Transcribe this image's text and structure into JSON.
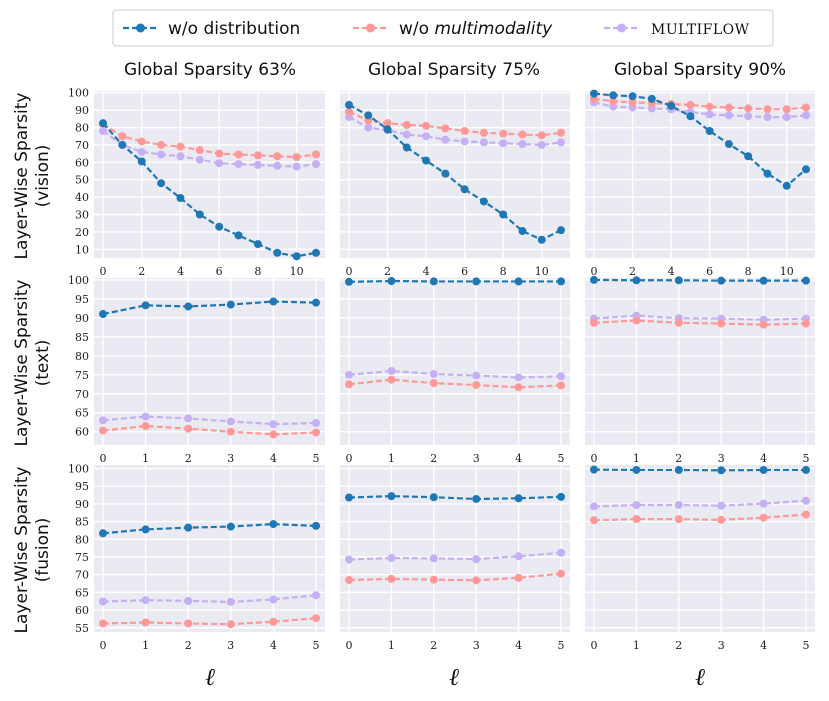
{
  "legend": {
    "items": [
      {
        "prefix": "w/o ",
        "text": "distribution",
        "style": "normal",
        "color": "#1f77b4"
      },
      {
        "prefix": "w/o ",
        "text": "multimodality",
        "style": "italic",
        "color": "#ff9896"
      },
      {
        "prefix": "",
        "text": "MULTIFLOW",
        "style": "smallcaps",
        "color": "#c5b0f5"
      }
    ]
  },
  "columns": [
    "Global Sparsity 63%",
    "Global Sparsity 75%",
    "Global Sparsity 90%"
  ],
  "rows": [
    {
      "label_line1": "Layer-Wise Sparsity",
      "label_line2": "(vision)"
    },
    {
      "label_line1": "Layer-Wise Sparsity",
      "label_line2": "(text)"
    },
    {
      "label_line1": "Layer-Wise Sparsity",
      "label_line2": "(fusion)"
    }
  ],
  "xlabel": "ℓ",
  "chart_data": [
    {
      "type": "line",
      "row": 0,
      "col": 0,
      "x": [
        0,
        1,
        2,
        3,
        4,
        5,
        6,
        7,
        8,
        9,
        10,
        11
      ],
      "ylim": [
        5,
        101
      ],
      "yticks": [
        10,
        20,
        30,
        40,
        50,
        60,
        70,
        80,
        90,
        100
      ],
      "xticks": [
        0,
        2,
        4,
        6,
        8,
        10
      ],
      "series": [
        {
          "name": "w/o distribution",
          "values": [
            82.5,
            70,
            60.5,
            48,
            39.5,
            30,
            23,
            18,
            13,
            8,
            6,
            8
          ]
        },
        {
          "name": "w/o multimodality",
          "values": [
            82,
            75,
            72,
            70,
            69,
            67,
            65,
            64.5,
            64,
            63.5,
            63,
            64.5
          ]
        },
        {
          "name": "MULTIFLOW",
          "values": [
            78,
            70,
            66,
            64.5,
            63.5,
            61.5,
            59.5,
            59,
            58.5,
            58,
            57.5,
            59
          ]
        }
      ]
    },
    {
      "type": "line",
      "row": 0,
      "col": 1,
      "x": [
        0,
        1,
        2,
        3,
        4,
        5,
        6,
        7,
        8,
        9,
        10,
        11
      ],
      "ylim": [
        5,
        101
      ],
      "yticks": [
        10,
        20,
        30,
        40,
        50,
        60,
        70,
        80,
        90,
        100
      ],
      "xticks": [
        0,
        2,
        4,
        6,
        8,
        10
      ],
      "series": [
        {
          "name": "w/o distribution",
          "values": [
            93,
            87,
            79,
            68.5,
            61,
            53.5,
            44.5,
            37.5,
            30,
            20.5,
            15.5,
            21
          ]
        },
        {
          "name": "w/o multimodality",
          "values": [
            89,
            84,
            82.5,
            81.5,
            81,
            79.5,
            78,
            77,
            76.5,
            76,
            75.5,
            77
          ]
        },
        {
          "name": "MULTIFLOW",
          "values": [
            86,
            80,
            78.5,
            76,
            75,
            73,
            72,
            71.5,
            71,
            70.5,
            70,
            71.5
          ]
        }
      ]
    },
    {
      "type": "line",
      "row": 0,
      "col": 2,
      "x": [
        0,
        1,
        2,
        3,
        4,
        5,
        6,
        7,
        8,
        9,
        10,
        11
      ],
      "ylim": [
        5,
        101
      ],
      "yticks": [
        10,
        20,
        30,
        40,
        50,
        60,
        70,
        80,
        90,
        100
      ],
      "xticks": [
        0,
        2,
        4,
        6,
        8,
        10
      ],
      "series": [
        {
          "name": "w/o distribution",
          "values": [
            99.5,
            98.5,
            98,
            96.5,
            92.5,
            86.5,
            78,
            70.5,
            63.5,
            53.5,
            46.5,
            56
          ]
        },
        {
          "name": "w/o multimodality",
          "values": [
            96.5,
            95,
            94.5,
            94,
            93.5,
            93,
            92,
            91.5,
            91,
            90.5,
            90.5,
            91.5
          ]
        },
        {
          "name": "MULTIFLOW",
          "values": [
            94.5,
            92,
            91.5,
            91,
            90.5,
            89,
            87.5,
            87,
            86.5,
            86,
            86,
            87
          ]
        }
      ]
    },
    {
      "type": "line",
      "row": 1,
      "col": 0,
      "x": [
        0,
        1,
        2,
        3,
        4,
        5
      ],
      "ylim": [
        56.5,
        100.5
      ],
      "yticks": [
        60,
        65,
        70,
        75,
        80,
        85,
        90,
        95,
        100
      ],
      "xticks": [
        0,
        1,
        2,
        3,
        4,
        5
      ],
      "series": [
        {
          "name": "w/o distribution",
          "values": [
            91,
            93.3,
            93,
            93.5,
            94.3,
            94
          ]
        },
        {
          "name": "w/o multimodality",
          "values": [
            60.3,
            61.5,
            60.8,
            60,
            59.3,
            59.8
          ]
        },
        {
          "name": "MULTIFLOW",
          "values": [
            63,
            64,
            63.5,
            62.7,
            62,
            62.3
          ]
        }
      ]
    },
    {
      "type": "line",
      "row": 1,
      "col": 1,
      "x": [
        0,
        1,
        2,
        3,
        4,
        5
      ],
      "ylim": [
        56.5,
        100.5
      ],
      "yticks": [
        60,
        65,
        70,
        75,
        80,
        85,
        90,
        95,
        100
      ],
      "xticks": [
        0,
        1,
        2,
        3,
        4,
        5
      ],
      "series": [
        {
          "name": "w/o distribution",
          "values": [
            99.5,
            99.7,
            99.6,
            99.6,
            99.6,
            99.6
          ]
        },
        {
          "name": "w/o multimodality",
          "values": [
            72.5,
            73.7,
            72.8,
            72.3,
            71.7,
            72.2
          ]
        },
        {
          "name": "MULTIFLOW",
          "values": [
            75,
            76,
            75.2,
            74.8,
            74.3,
            74.6
          ]
        }
      ]
    },
    {
      "type": "line",
      "row": 1,
      "col": 2,
      "x": [
        0,
        1,
        2,
        3,
        4,
        5
      ],
      "ylim": [
        56.5,
        100.5
      ],
      "yticks": [
        60,
        65,
        70,
        75,
        80,
        85,
        90,
        95,
        100
      ],
      "xticks": [
        0,
        1,
        2,
        3,
        4,
        5
      ],
      "series": [
        {
          "name": "w/o distribution",
          "values": [
            100,
            99.9,
            99.9,
            99.8,
            99.8,
            99.8
          ]
        },
        {
          "name": "w/o multimodality",
          "values": [
            88.7,
            89.3,
            88.7,
            88.5,
            88.2,
            88.5
          ]
        },
        {
          "name": "MULTIFLOW",
          "values": [
            89.8,
            90.6,
            89.9,
            89.8,
            89.5,
            89.8
          ]
        }
      ]
    },
    {
      "type": "line",
      "row": 2,
      "col": 0,
      "x": [
        0,
        1,
        2,
        3,
        4,
        5
      ],
      "ylim": [
        53.8,
        101
      ],
      "yticks": [
        55,
        60,
        65,
        70,
        75,
        80,
        85,
        90,
        95,
        100
      ],
      "xticks": [
        0,
        1,
        2,
        3,
        4,
        5
      ],
      "series": [
        {
          "name": "w/o distribution",
          "values": [
            81.7,
            82.8,
            83.3,
            83.6,
            84.3,
            83.8
          ]
        },
        {
          "name": "w/o multimodality",
          "values": [
            56.2,
            56.5,
            56.2,
            56,
            56.7,
            57.7
          ]
        },
        {
          "name": "MULTIFLOW",
          "values": [
            62.4,
            62.8,
            62.6,
            62.3,
            63,
            64.2
          ]
        }
      ]
    },
    {
      "type": "line",
      "row": 2,
      "col": 1,
      "x": [
        0,
        1,
        2,
        3,
        4,
        5
      ],
      "ylim": [
        53.8,
        101
      ],
      "yticks": [
        55,
        60,
        65,
        70,
        75,
        80,
        85,
        90,
        95,
        100
      ],
      "xticks": [
        0,
        1,
        2,
        3,
        4,
        5
      ],
      "series": [
        {
          "name": "w/o distribution",
          "values": [
            91.8,
            92.2,
            91.9,
            91.4,
            91.6,
            92
          ]
        },
        {
          "name": "w/o multimodality",
          "values": [
            68.5,
            68.8,
            68.6,
            68.4,
            69.1,
            70.3
          ]
        },
        {
          "name": "MULTIFLOW",
          "values": [
            74.3,
            74.7,
            74.6,
            74.4,
            75.2,
            76.2
          ]
        }
      ]
    },
    {
      "type": "line",
      "row": 2,
      "col": 2,
      "x": [
        0,
        1,
        2,
        3,
        4,
        5
      ],
      "ylim": [
        53.8,
        101
      ],
      "yticks": [
        55,
        60,
        65,
        70,
        75,
        80,
        85,
        90,
        95,
        100
      ],
      "xticks": [
        0,
        1,
        2,
        3,
        4,
        5
      ],
      "series": [
        {
          "name": "w/o distribution",
          "values": [
            99.7,
            99.6,
            99.6,
            99.5,
            99.6,
            99.6
          ]
        },
        {
          "name": "w/o multimodality",
          "values": [
            85.4,
            85.7,
            85.7,
            85.5,
            86.1,
            87
          ]
        },
        {
          "name": "MULTIFLOW",
          "values": [
            89.3,
            89.7,
            89.7,
            89.5,
            90.1,
            90.9
          ]
        }
      ]
    }
  ]
}
